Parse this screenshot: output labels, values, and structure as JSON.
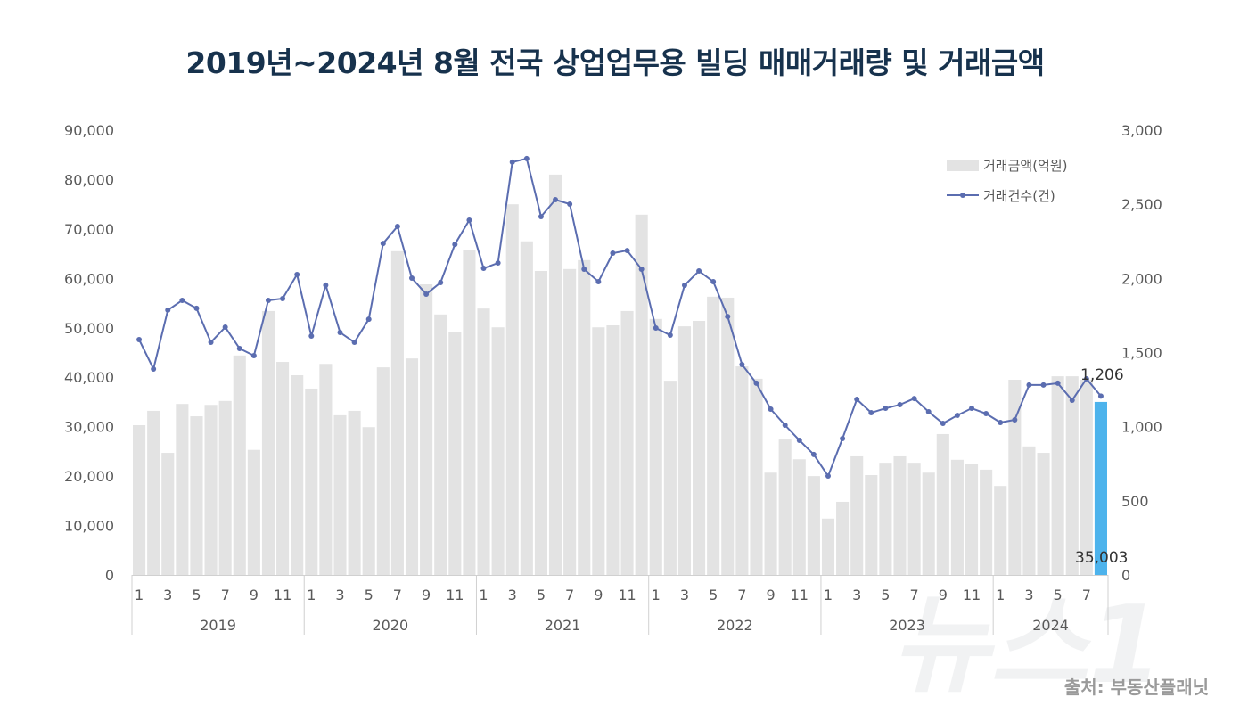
{
  "title": "2019년~2024년 8월 전국 상업업무용 빌딩 매매거래량 및 거래금액",
  "source": "출처: 부동산플래닛",
  "watermark": "뉴스1",
  "chart_data": {
    "type": "bar+line",
    "title": "2019년~2024년 8월 전국 상업업무용 빌딩 매매거래량 및 거래금액",
    "years": [
      "2019",
      "2020",
      "2021",
      "2022",
      "2023",
      "2024"
    ],
    "months_per_year": [
      12,
      12,
      12,
      12,
      12,
      8
    ],
    "month_tick_labels": [
      "1",
      "3",
      "5",
      "7",
      "9",
      "11"
    ],
    "y_left": {
      "range": [
        0,
        90000
      ],
      "ticks": [
        "0",
        "10,000",
        "20,000",
        "30,000",
        "40,000",
        "50,000",
        "60,000",
        "70,000",
        "80,000",
        "90,000"
      ]
    },
    "y_right": {
      "range": [
        0,
        3000
      ],
      "ticks": [
        "0",
        "500",
        "1,000",
        "1,500",
        "2,000",
        "2,500",
        "3,000"
      ]
    },
    "legend_position": "top-right",
    "grid": false,
    "series": [
      {
        "name": "거래금액(억원)",
        "type": "bar",
        "axis": "left",
        "color": "#e3e3e3",
        "highlight_color": "#4db3ec",
        "values": [
          30300,
          33200,
          24700,
          34600,
          32100,
          34400,
          35200,
          44400,
          25300,
          53400,
          43100,
          40400,
          37700,
          42700,
          32300,
          33200,
          29900,
          42000,
          65500,
          43800,
          58800,
          52700,
          49100,
          65800,
          53900,
          50100,
          75000,
          67500,
          61500,
          81000,
          61900,
          63700,
          50100,
          50500,
          53400,
          72900,
          51800,
          39300,
          50300,
          51400,
          56300,
          56100,
          42200,
          39700,
          20700,
          27400,
          23400,
          20000,
          11400,
          14800,
          24000,
          20200,
          22700,
          24000,
          22700,
          20700,
          28500,
          23300,
          22500,
          21300,
          18000,
          39500,
          26000,
          24700,
          40200,
          40200,
          39500,
          35003
        ]
      },
      {
        "name": "거래건수(건)",
        "type": "line",
        "axis": "right",
        "color": "#5b6db0",
        "values": [
          1587,
          1389,
          1786,
          1852,
          1798,
          1569,
          1671,
          1527,
          1479,
          1852,
          1864,
          2026,
          1611,
          1954,
          1635,
          1569,
          1725,
          2236,
          2351,
          2002,
          1894,
          1972,
          2230,
          2393,
          2068,
          2104,
          2784,
          2808,
          2417,
          2531,
          2501,
          2062,
          1978,
          2170,
          2188,
          2062,
          1665,
          1617,
          1954,
          2050,
          1978,
          1743,
          1419,
          1293,
          1118,
          1010,
          908,
          812,
          667,
          920,
          1184,
          1094,
          1124,
          1148,
          1190,
          1100,
          1022,
          1076,
          1124,
          1088,
          1028,
          1046,
          1281,
          1281,
          1293,
          1178,
          1323,
          1206
        ]
      }
    ],
    "data_labels": {
      "last_bar": "35,003",
      "last_point": "1,206"
    }
  }
}
